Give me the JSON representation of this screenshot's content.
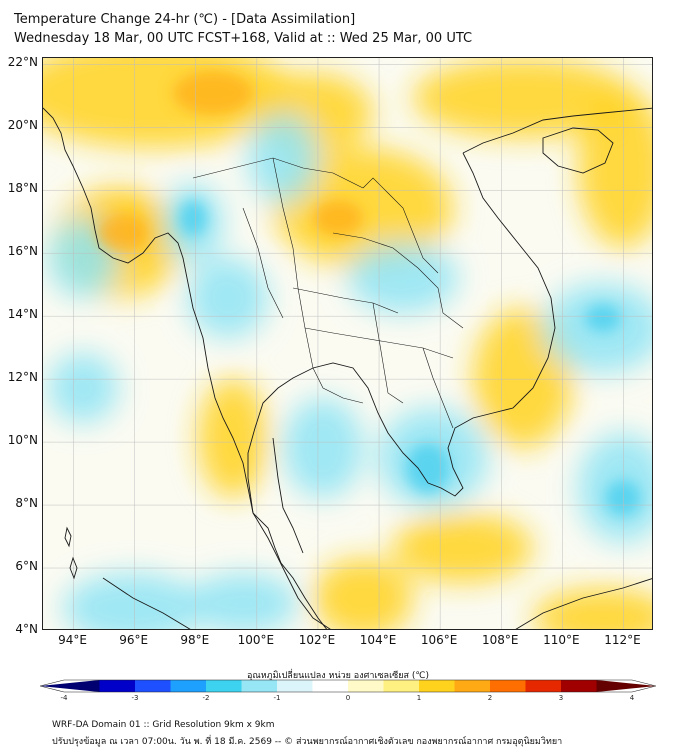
{
  "header": {
    "title": "Temperature Change 24-hr (℃) - [Data Assimilation]",
    "subtitle": "Wednesday 18 Mar, 00 UTC FCST+168, Valid at :: Wed 25 Mar, 00 UTC"
  },
  "map": {
    "lon_range": [
      93,
      113
    ],
    "lat_range": [
      4,
      22.2
    ],
    "lat_labels": [
      "4°N",
      "6°N",
      "8°N",
      "10°N",
      "12°N",
      "14°N",
      "16°N",
      "18°N",
      "20°N",
      "22°N"
    ],
    "lat_values": [
      4,
      6,
      8,
      10,
      12,
      14,
      16,
      18,
      20,
      22
    ],
    "lon_labels": [
      "94°E",
      "96°E",
      "98°E",
      "100°E",
      "102°E",
      "104°E",
      "106°E",
      "108°E",
      "110°E",
      "112°E"
    ],
    "lon_values": [
      94,
      96,
      98,
      100,
      102,
      104,
      106,
      108,
      110,
      112
    ],
    "colors": {
      "warm": "#ffd21f",
      "hot": "#ffb01c",
      "cool": "#8ee4f5",
      "cold": "#4fd0ee",
      "neutral": "#fbfbf2",
      "border": "#1a1a1a",
      "grid": "#bdbdbd"
    }
  },
  "colorbar": {
    "title": "อุณหภูมิเปลี่ยนแปลง หน่วย องศาเซลเซียส (℃)",
    "min": -4,
    "max": 4,
    "tick_labels": [
      "-4",
      "-3",
      "-2",
      "-1",
      "0",
      "1",
      "2",
      "3",
      "4"
    ],
    "tick_values": [
      -4,
      -3,
      -2,
      -1,
      0,
      1,
      2,
      3,
      4
    ],
    "colors": [
      "#000070",
      "#0000c8",
      "#1e50ff",
      "#1ea0ff",
      "#3cd2f0",
      "#96e6f5",
      "#dcf5fa",
      "#ffffff",
      "#fffac8",
      "#fff082",
      "#ffd21e",
      "#ffaa14",
      "#ff6e00",
      "#e62800",
      "#a00000",
      "#640000"
    ]
  },
  "footer": {
    "line1": "WRF-DA Domain 01 :: Grid Resolution 9km x 9km",
    "line2": "ปรับปรุงข้อมูล ณ เวลา 07:00น. วัน พ. ที่ 18 มี.ค. 2569 -- © ส่วนพยากรณ์อากาศเชิงตัวเลข กองพยากรณ์อากาศ กรมอุตุนิยมวิทยา"
  }
}
